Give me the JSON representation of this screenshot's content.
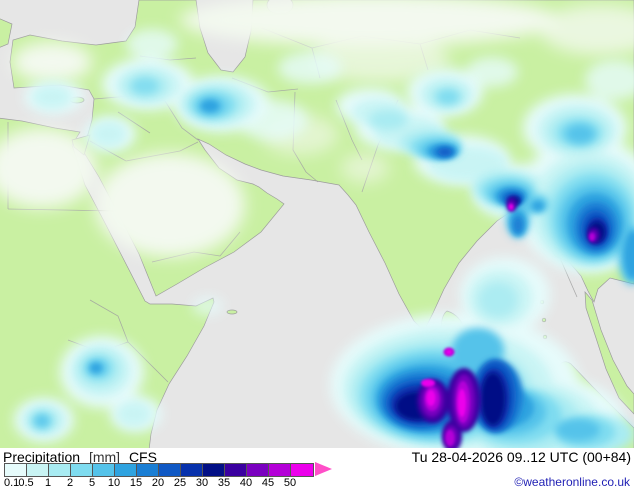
{
  "legend": {
    "title": "Precipitation",
    "unit": "[mm]",
    "model": "CFS",
    "datetime": "Tu 28-04-2026 09..12 UTC (00+84)",
    "copyright": "©weatheronline.co.uk",
    "copyright_color": "#1f1fb4",
    "arrow_color": "#ff4fc8",
    "scale": [
      {
        "label": "0.1",
        "color": "#e6fbfb"
      },
      {
        "label": "0.5",
        "color": "#c9f4f4"
      },
      {
        "label": "1",
        "color": "#a8ebf2"
      },
      {
        "label": "2",
        "color": "#7fdcf0"
      },
      {
        "label": "5",
        "color": "#55c3ea"
      },
      {
        "label": "10",
        "color": "#2fa3e0"
      },
      {
        "label": "15",
        "color": "#1a7ed4"
      },
      {
        "label": "20",
        "color": "#0f58c4"
      },
      {
        "label": "25",
        "color": "#0731ac"
      },
      {
        "label": "30",
        "color": "#021086"
      },
      {
        "label": "35",
        "color": "#3a00a0"
      },
      {
        "label": "40",
        "color": "#7a00c0"
      },
      {
        "label": "45",
        "color": "#b400d8"
      },
      {
        "label": "50",
        "color": "#ec00ec"
      }
    ]
  },
  "map": {
    "colors": {
      "sea": "#e6e6e6",
      "land": "#c9f0a2",
      "coast": "#9c9c9c",
      "border": "#a0a0a0",
      "desert": "#f3f9ef"
    }
  }
}
